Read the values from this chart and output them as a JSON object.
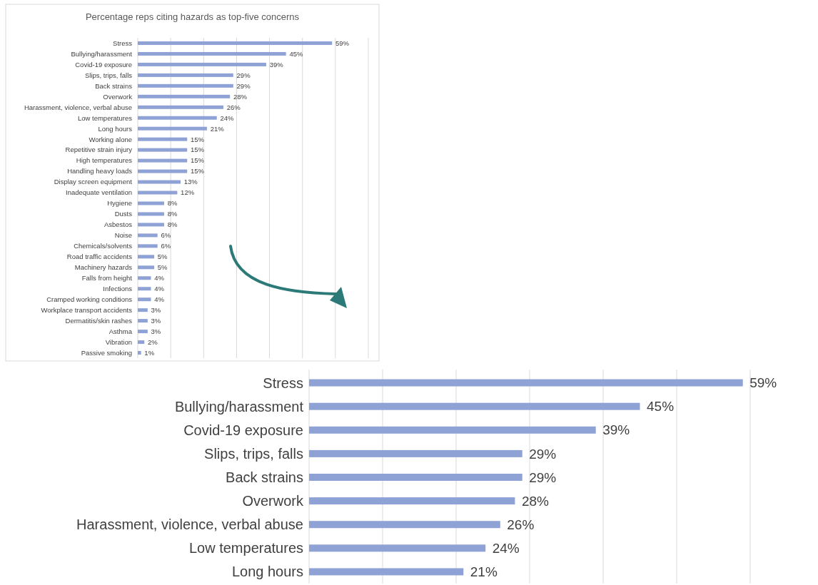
{
  "chart_data": [
    {
      "type": "bar",
      "orientation": "horizontal",
      "title": "Percentage reps citing hazards as top-five concerns",
      "categories": [
        "Stress",
        "Bullying/harassment",
        "Covid-19 exposure",
        "Slips, trips, falls",
        "Back strains",
        "Overwork",
        "Harassment, violence, verbal abuse",
        "Low temperatures",
        "Long hours",
        "Working alone",
        "Repetitive strain injury",
        "High temperatures",
        "Handling heavy loads",
        "Display screen equipment",
        "Inadequate ventilation",
        "Hygiene",
        "Dusts",
        "Asbestos",
        "Noise",
        "Chemicals/solvents",
        "Road traffic accidents",
        "Machinery hazards",
        "Falls from height",
        "Infections",
        "Cramped working conditions",
        "Workplace transport accidents",
        "Dermatitis/skin rashes",
        "Asthma",
        "Vibration",
        "Passive smoking"
      ],
      "values": [
        59,
        45,
        39,
        29,
        29,
        28,
        26,
        24,
        21,
        15,
        15,
        15,
        15,
        13,
        12,
        8,
        8,
        8,
        6,
        6,
        5,
        5,
        4,
        4,
        4,
        3,
        3,
        3,
        2,
        1
      ],
      "value_labels": [
        "59%",
        "45%",
        "39%",
        "29%",
        "29%",
        "28%",
        "26%",
        "24%",
        "21%",
        "15%",
        "15%",
        "15%",
        "15%",
        "13%",
        "12%",
        "8%",
        "8%",
        "8%",
        "6%",
        "6%",
        "5%",
        "5%",
        "4%",
        "4%",
        "4%",
        "3%",
        "3%",
        "3%",
        "2%",
        "1%"
      ],
      "color": "#8fa2d6",
      "xlim": [
        0,
        70
      ],
      "xticks": [
        {
          "value": 0,
          "label": null
        },
        {
          "value": 10,
          "label": null
        },
        {
          "value": 20,
          "label": null
        },
        {
          "value": 30,
          "label": null
        },
        {
          "value": 40,
          "label": null
        },
        {
          "value": 50,
          "label": null
        },
        {
          "value": 60,
          "label": null
        },
        {
          "value": 70,
          "label": null
        }
      ],
      "grid": "x",
      "tick_labels": "y"
    },
    {
      "type": "bar",
      "orientation": "horizontal",
      "categories": [
        "Stress",
        "Bullying/harassment",
        "Covid-19 exposure",
        "Slips, trips, falls",
        "Back strains",
        "Overwork",
        "Harassment, violence, verbal abuse",
        "Low temperatures",
        "Long hours"
      ],
      "values": [
        59,
        45,
        39,
        29,
        29,
        28,
        26,
        24,
        21
      ],
      "value_labels": [
        "59%",
        "45%",
        "39%",
        "29%",
        "29%",
        "28%",
        "26%",
        "24%",
        "21%"
      ],
      "color": "#8fa2d6",
      "xlim": [
        0,
        60
      ],
      "xticks": [
        {
          "value": 0,
          "label": null
        },
        {
          "value": 10,
          "label": null
        },
        {
          "value": 20,
          "label": null
        },
        {
          "value": 30,
          "label": null
        },
        {
          "value": 40,
          "label": null
        },
        {
          "value": 50,
          "label": null
        },
        {
          "value": 60,
          "label": null
        }
      ],
      "grid": "x",
      "tick_labels": "y"
    }
  ]
}
